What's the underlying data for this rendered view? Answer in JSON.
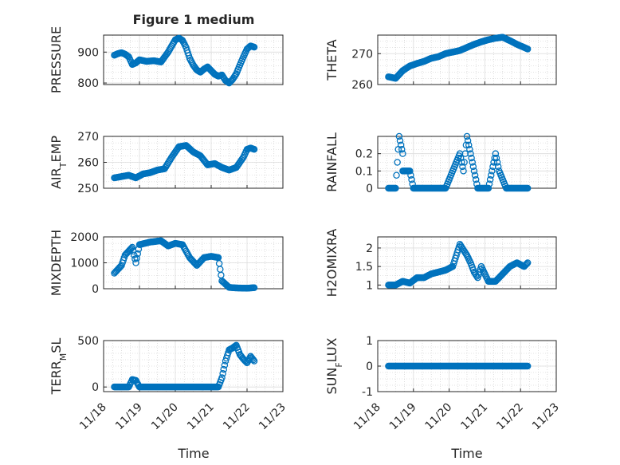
{
  "figure": {
    "title": "Figure 1 medium",
    "xlabel": "Time",
    "x_ticks": [
      "11/18",
      "11/19",
      "11/20",
      "11/21",
      "11/22",
      "11/23"
    ],
    "marker_color": "#0072BD",
    "grid": true
  },
  "chart_data": [
    {
      "type": "scatter",
      "ylabel": "PRESSURE",
      "ylim": [
        795,
        955
      ],
      "yticks": [
        "800",
        "900"
      ],
      "series": [
        {
          "values_xy": [
            [
              18.3,
              890
            ],
            [
              18.4,
              895
            ],
            [
              18.5,
              898
            ],
            [
              18.6,
              893
            ],
            [
              18.7,
              885
            ],
            [
              18.8,
              860
            ],
            [
              18.9,
              865
            ],
            [
              19.0,
              875
            ],
            [
              19.2,
              870
            ],
            [
              19.4,
              872
            ],
            [
              19.6,
              868
            ],
            [
              19.8,
              900
            ],
            [
              20.0,
              940
            ],
            [
              20.1,
              945
            ],
            [
              20.2,
              938
            ],
            [
              20.3,
              915
            ],
            [
              20.4,
              880
            ],
            [
              20.5,
              858
            ],
            [
              20.6,
              842
            ],
            [
              20.7,
              835
            ],
            [
              20.8,
              845
            ],
            [
              20.9,
              852
            ],
            [
              21.0,
              840
            ],
            [
              21.1,
              828
            ],
            [
              21.2,
              822
            ],
            [
              21.3,
              826
            ],
            [
              21.4,
              808
            ],
            [
              21.5,
              800
            ],
            [
              21.6,
              812
            ],
            [
              21.7,
              830
            ],
            [
              21.8,
              858
            ],
            [
              21.9,
              885
            ],
            [
              22.0,
              910
            ],
            [
              22.1,
              920
            ],
            [
              22.2,
              916
            ]
          ]
        }
      ]
    },
    {
      "type": "scatter",
      "ylabel": "THETA",
      "ylim": [
        260,
        276
      ],
      "yticks": [
        "260",
        "270"
      ],
      "series": [
        {
          "values_xy": [
            [
              18.3,
              262.5
            ],
            [
              18.5,
              262
            ],
            [
              18.7,
              264.5
            ],
            [
              18.9,
              266
            ],
            [
              19.1,
              266.8
            ],
            [
              19.3,
              267.5
            ],
            [
              19.5,
              268.5
            ],
            [
              19.7,
              269
            ],
            [
              19.9,
              270
            ],
            [
              20.1,
              270.5
            ],
            [
              20.3,
              271
            ],
            [
              20.5,
              272
            ],
            [
              20.7,
              273
            ],
            [
              20.9,
              273.8
            ],
            [
              21.1,
              274.5
            ],
            [
              21.3,
              275
            ],
            [
              21.5,
              275.3
            ],
            [
              21.7,
              274.2
            ],
            [
              21.9,
              273
            ],
            [
              22.0,
              272.5
            ],
            [
              22.1,
              272
            ],
            [
              22.2,
              271.5
            ]
          ]
        }
      ]
    },
    {
      "type": "scatter",
      "ylabel": "AIR_TEMP",
      "ylim": [
        250,
        270
      ],
      "yticks": [
        "250",
        "260",
        "270"
      ],
      "series": [
        {
          "values_xy": [
            [
              18.3,
              254
            ],
            [
              18.5,
              254.5
            ],
            [
              18.7,
              255
            ],
            [
              18.9,
              254
            ],
            [
              19.1,
              255.5
            ],
            [
              19.3,
              256
            ],
            [
              19.5,
              257
            ],
            [
              19.7,
              257.5
            ],
            [
              19.9,
              262
            ],
            [
              20.1,
              266
            ],
            [
              20.3,
              266.5
            ],
            [
              20.5,
              264
            ],
            [
              20.7,
              262.5
            ],
            [
              20.9,
              259
            ],
            [
              21.1,
              259.5
            ],
            [
              21.3,
              258
            ],
            [
              21.5,
              257
            ],
            [
              21.7,
              258
            ],
            [
              21.9,
              262
            ],
            [
              22.0,
              265
            ],
            [
              22.1,
              265.5
            ],
            [
              22.2,
              265
            ]
          ]
        }
      ]
    },
    {
      "type": "scatter",
      "ylabel": "RAINFALL",
      "ylim": [
        0,
        0.3
      ],
      "yticks": [
        "0",
        "0.1",
        "0.2"
      ],
      "series": [
        {
          "values_xy": [
            [
              18.3,
              0
            ],
            [
              18.5,
              0
            ],
            [
              18.6,
              0.3
            ],
            [
              18.7,
              0.2
            ],
            [
              18.7,
              0.1
            ],
            [
              18.9,
              0.1
            ],
            [
              19.0,
              0
            ],
            [
              19.3,
              0
            ],
            [
              19.6,
              0
            ],
            [
              19.9,
              0
            ],
            [
              20.3,
              0.2
            ],
            [
              20.4,
              0.1
            ],
            [
              20.5,
              0.3
            ],
            [
              20.6,
              0.2
            ],
            [
              20.7,
              0.1
            ],
            [
              20.8,
              0
            ],
            [
              21.1,
              0
            ],
            [
              21.3,
              0.2
            ],
            [
              21.4,
              0.1
            ],
            [
              21.6,
              0
            ],
            [
              21.9,
              0
            ],
            [
              22.2,
              0
            ]
          ]
        }
      ]
    },
    {
      "type": "scatter",
      "ylabel": "MIXDEPTH",
      "ylim": [
        0,
        2000
      ],
      "yticks": [
        "0",
        "1000",
        "2000"
      ],
      "series": [
        {
          "values_xy": [
            [
              18.3,
              600
            ],
            [
              18.5,
              900
            ],
            [
              18.6,
              1300
            ],
            [
              18.8,
              1600
            ],
            [
              18.9,
              1000
            ],
            [
              19.0,
              1700
            ],
            [
              19.3,
              1800
            ],
            [
              19.6,
              1850
            ],
            [
              19.8,
              1650
            ],
            [
              20.0,
              1750
            ],
            [
              20.2,
              1700
            ],
            [
              20.4,
              1200
            ],
            [
              20.6,
              900
            ],
            [
              20.8,
              1200
            ],
            [
              21.0,
              1250
            ],
            [
              21.2,
              1200
            ],
            [
              21.3,
              300
            ],
            [
              21.5,
              50
            ],
            [
              21.7,
              30
            ],
            [
              22.0,
              20
            ],
            [
              22.2,
              40
            ]
          ]
        }
      ]
    },
    {
      "type": "scatter",
      "ylabel": "H2OMIXRA",
      "ylim": [
        0.9,
        2.3
      ],
      "yticks": [
        "1",
        "1.5",
        "2"
      ],
      "series": [
        {
          "values_xy": [
            [
              18.3,
              1.0
            ],
            [
              18.5,
              1.0
            ],
            [
              18.7,
              1.1
            ],
            [
              18.9,
              1.05
            ],
            [
              19.1,
              1.2
            ],
            [
              19.3,
              1.2
            ],
            [
              19.5,
              1.3
            ],
            [
              19.7,
              1.35
            ],
            [
              19.9,
              1.4
            ],
            [
              20.1,
              1.5
            ],
            [
              20.2,
              1.8
            ],
            [
              20.3,
              2.1
            ],
            [
              20.4,
              1.95
            ],
            [
              20.5,
              1.8
            ],
            [
              20.6,
              1.6
            ],
            [
              20.7,
              1.35
            ],
            [
              20.8,
              1.2
            ],
            [
              20.9,
              1.5
            ],
            [
              21.0,
              1.3
            ],
            [
              21.1,
              1.1
            ],
            [
              21.3,
              1.1
            ],
            [
              21.5,
              1.3
            ],
            [
              21.7,
              1.5
            ],
            [
              21.9,
              1.6
            ],
            [
              22.1,
              1.5
            ],
            [
              22.2,
              1.6
            ]
          ]
        }
      ]
    },
    {
      "type": "scatter",
      "ylabel": "TERR_MSL",
      "ylim": [
        -50,
        500
      ],
      "yticks": [
        "0",
        "500"
      ],
      "series": [
        {
          "values_xy": [
            [
              18.3,
              0
            ],
            [
              18.5,
              0
            ],
            [
              18.7,
              0
            ],
            [
              18.8,
              80
            ],
            [
              18.9,
              70
            ],
            [
              19.0,
              0
            ],
            [
              19.5,
              0
            ],
            [
              20.0,
              0
            ],
            [
              20.5,
              0
            ],
            [
              21.0,
              0
            ],
            [
              21.2,
              0
            ],
            [
              21.3,
              100
            ],
            [
              21.4,
              280
            ],
            [
              21.5,
              400
            ],
            [
              21.6,
              420
            ],
            [
              21.7,
              450
            ],
            [
              21.8,
              350
            ],
            [
              21.9,
              300
            ],
            [
              22.0,
              260
            ],
            [
              22.1,
              330
            ],
            [
              22.2,
              280
            ]
          ]
        }
      ]
    },
    {
      "type": "scatter",
      "ylabel": "SUN_FLUX",
      "ylim": [
        -1,
        1
      ],
      "yticks": [
        "-1",
        "0",
        "1"
      ],
      "series": [
        {
          "values_xy": [
            [
              18.3,
              0
            ],
            [
              18.6,
              0
            ],
            [
              18.9,
              0
            ],
            [
              19.2,
              0
            ],
            [
              19.5,
              0
            ],
            [
              19.8,
              0
            ],
            [
              20.1,
              0
            ],
            [
              20.4,
              0
            ],
            [
              20.7,
              0
            ],
            [
              21.0,
              0
            ],
            [
              21.3,
              0
            ],
            [
              21.6,
              0
            ],
            [
              21.9,
              0
            ],
            [
              22.2,
              0
            ]
          ]
        }
      ]
    }
  ]
}
